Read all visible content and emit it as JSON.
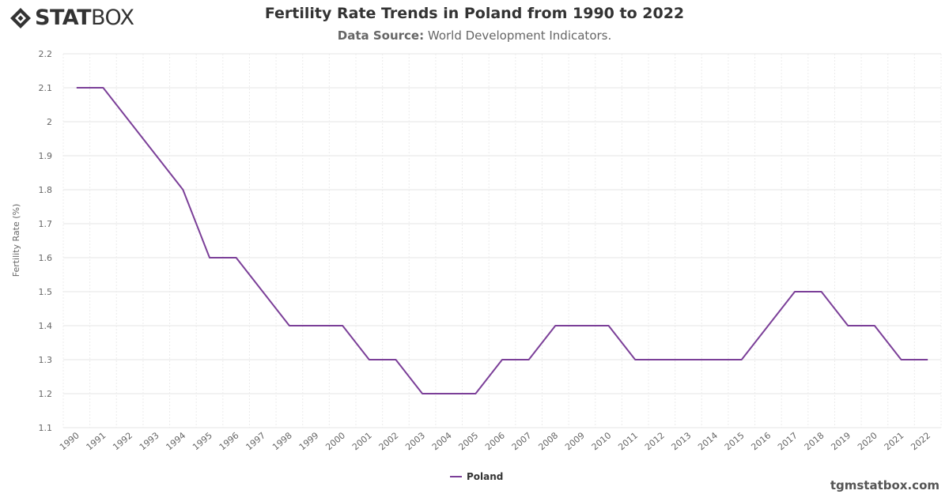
{
  "brand": {
    "logo_bold": "STAT",
    "logo_light": "BOX",
    "footer": "tgmstatbox.com"
  },
  "header": {
    "title": "Fertility Rate Trends in Poland from 1990 to 2022",
    "source_label": "Data Source:",
    "source_value": "World Development Indicators."
  },
  "colors": {
    "series": "#7b3f98",
    "grid": "#e6e6e6",
    "axis_text": "#666666"
  },
  "chart_data": {
    "type": "line",
    "title": "Fertility Rate Trends in Poland from 1990 to 2022",
    "xlabel": "",
    "ylabel": "Fertility Rate (%)",
    "ylim": [
      1.1,
      2.2
    ],
    "yticks": [
      1.1,
      1.2,
      1.3,
      1.4,
      1.5,
      1.6,
      1.7,
      1.8,
      1.9,
      2,
      2.1,
      2.2
    ],
    "grid": true,
    "legend_position": "bottom-center",
    "x": [
      "1990",
      "1991",
      "1992",
      "1993",
      "1994",
      "1995",
      "1996",
      "1997",
      "1998",
      "1999",
      "2000",
      "2001",
      "2002",
      "2003",
      "2004",
      "2005",
      "2006",
      "2007",
      "2008",
      "2009",
      "2010",
      "2011",
      "2012",
      "2013",
      "2014",
      "2015",
      "2016",
      "2017",
      "2018",
      "2019",
      "2020",
      "2021",
      "2022"
    ],
    "series": [
      {
        "name": "Poland",
        "values": [
          2.1,
          2.1,
          2.0,
          1.9,
          1.8,
          1.6,
          1.6,
          1.5,
          1.4,
          1.4,
          1.4,
          1.3,
          1.3,
          1.2,
          1.2,
          1.2,
          1.3,
          1.3,
          1.4,
          1.4,
          1.4,
          1.3,
          1.3,
          1.3,
          1.3,
          1.3,
          1.4,
          1.5,
          1.5,
          1.4,
          1.4,
          1.3,
          1.3
        ]
      }
    ]
  }
}
